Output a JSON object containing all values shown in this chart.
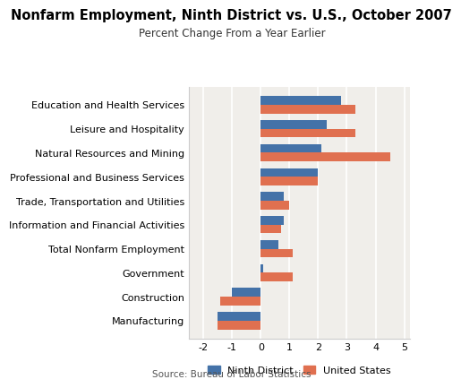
{
  "title": "Nonfarm Employment, Ninth District vs. U.S., October 2007",
  "subtitle": "Percent Change From a Year Earlier",
  "source": "Source: Bureau of Labor Statistics",
  "categories": [
    "Education and Health Services",
    "Leisure and Hospitality",
    "Natural Resources and Mining",
    "Professional and Business Services",
    "Trade, Transportation and Utilities",
    "Information and Financial Activities",
    "Total Nonfarm Employment",
    "Government",
    "Construction",
    "Manufacturing"
  ],
  "ninth_district": [
    2.8,
    2.3,
    2.1,
    2.0,
    0.8,
    0.8,
    0.6,
    0.1,
    -1.0,
    -1.5
  ],
  "united_states": [
    3.3,
    3.3,
    4.5,
    2.0,
    1.0,
    0.7,
    1.1,
    1.1,
    -1.4,
    -1.5
  ],
  "ninth_color": "#4472a8",
  "us_color": "#e07050",
  "xlim": [
    -2.5,
    5.2
  ],
  "xticks": [
    -2,
    -1,
    0,
    1,
    2,
    3,
    4,
    5
  ],
  "bar_height": 0.36,
  "background_color": "#f0eeea",
  "legend_labels": [
    "Ninth District",
    "United States"
  ],
  "title_fontsize": 10.5,
  "subtitle_fontsize": 8.5,
  "tick_fontsize": 8,
  "label_fontsize": 8,
  "source_fontsize": 7.5
}
